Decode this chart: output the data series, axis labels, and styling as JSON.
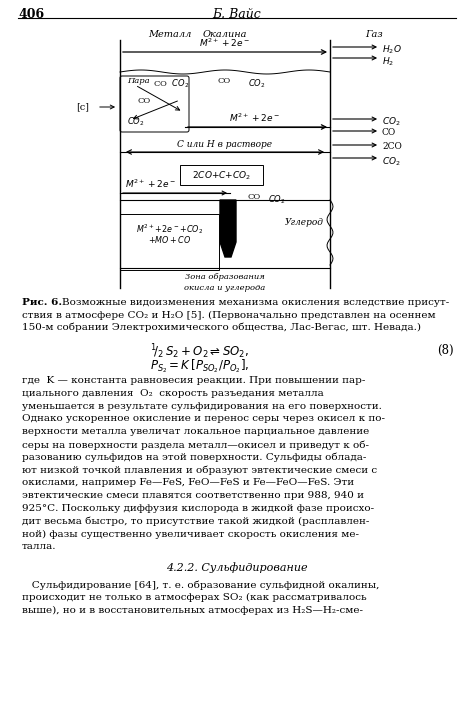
{
  "page_num": "406",
  "header": "Б. Вайс",
  "fig_caption_bold": "Рис. 6.",
  "fig_caption_rest": " Возможные видоизменения механизма окисления вследствие присут-ствия в атмосфере CO₂ и H₂O [5]. (Первоначально представлен на осеннем 150-м собрании Электрохимического общества, Лас-Вегас, шт. Невада.)",
  "eq_number": "(8)",
  "body_text_lines": [
    "где  K — константа равновесия реакции. При повышении пар-",
    "циального давления  O₂  скорость разъедания металла",
    "уменьшается в результате сульфидирования на его поверхности.",
    "Однако ускоренное окисление и перенос серы через окисел к по-",
    "верхности металла увеличат локальное парциальное давление",
    "серы на поверхности раздела металл—окисел и приведут к об-",
    "разованию сульфидов на этой поверхности. Сульфиды облада-",
    "ют низкой точкой плавления и образуют эвтектические смеси с",
    "окислами, например Fe—FeS, FeO—FeS и Fe—FeO—FeS. Эти",
    "эвтектические смеси плавятся соответственно при 988, 940 и",
    "925°С. Поскольку диффузия кислорода в жидкой фазе происхо-",
    "дит весьма быстро, то присутствие такой жидкой (расплавлен-",
    "ной) фазы существенно увеличивает скорость окисления ме-",
    "талла."
  ],
  "section_title": "4.2.2. Сульфидирование",
  "last_para_lines": [
    "   Сульфидирование [64], т. е. образование сульфидной окалины,",
    "происходит не только в атмосферах SO₂ (как рассматривалось",
    "выше), но и в восстановительных атмосферах из H₂S—H₂-сме-"
  ]
}
